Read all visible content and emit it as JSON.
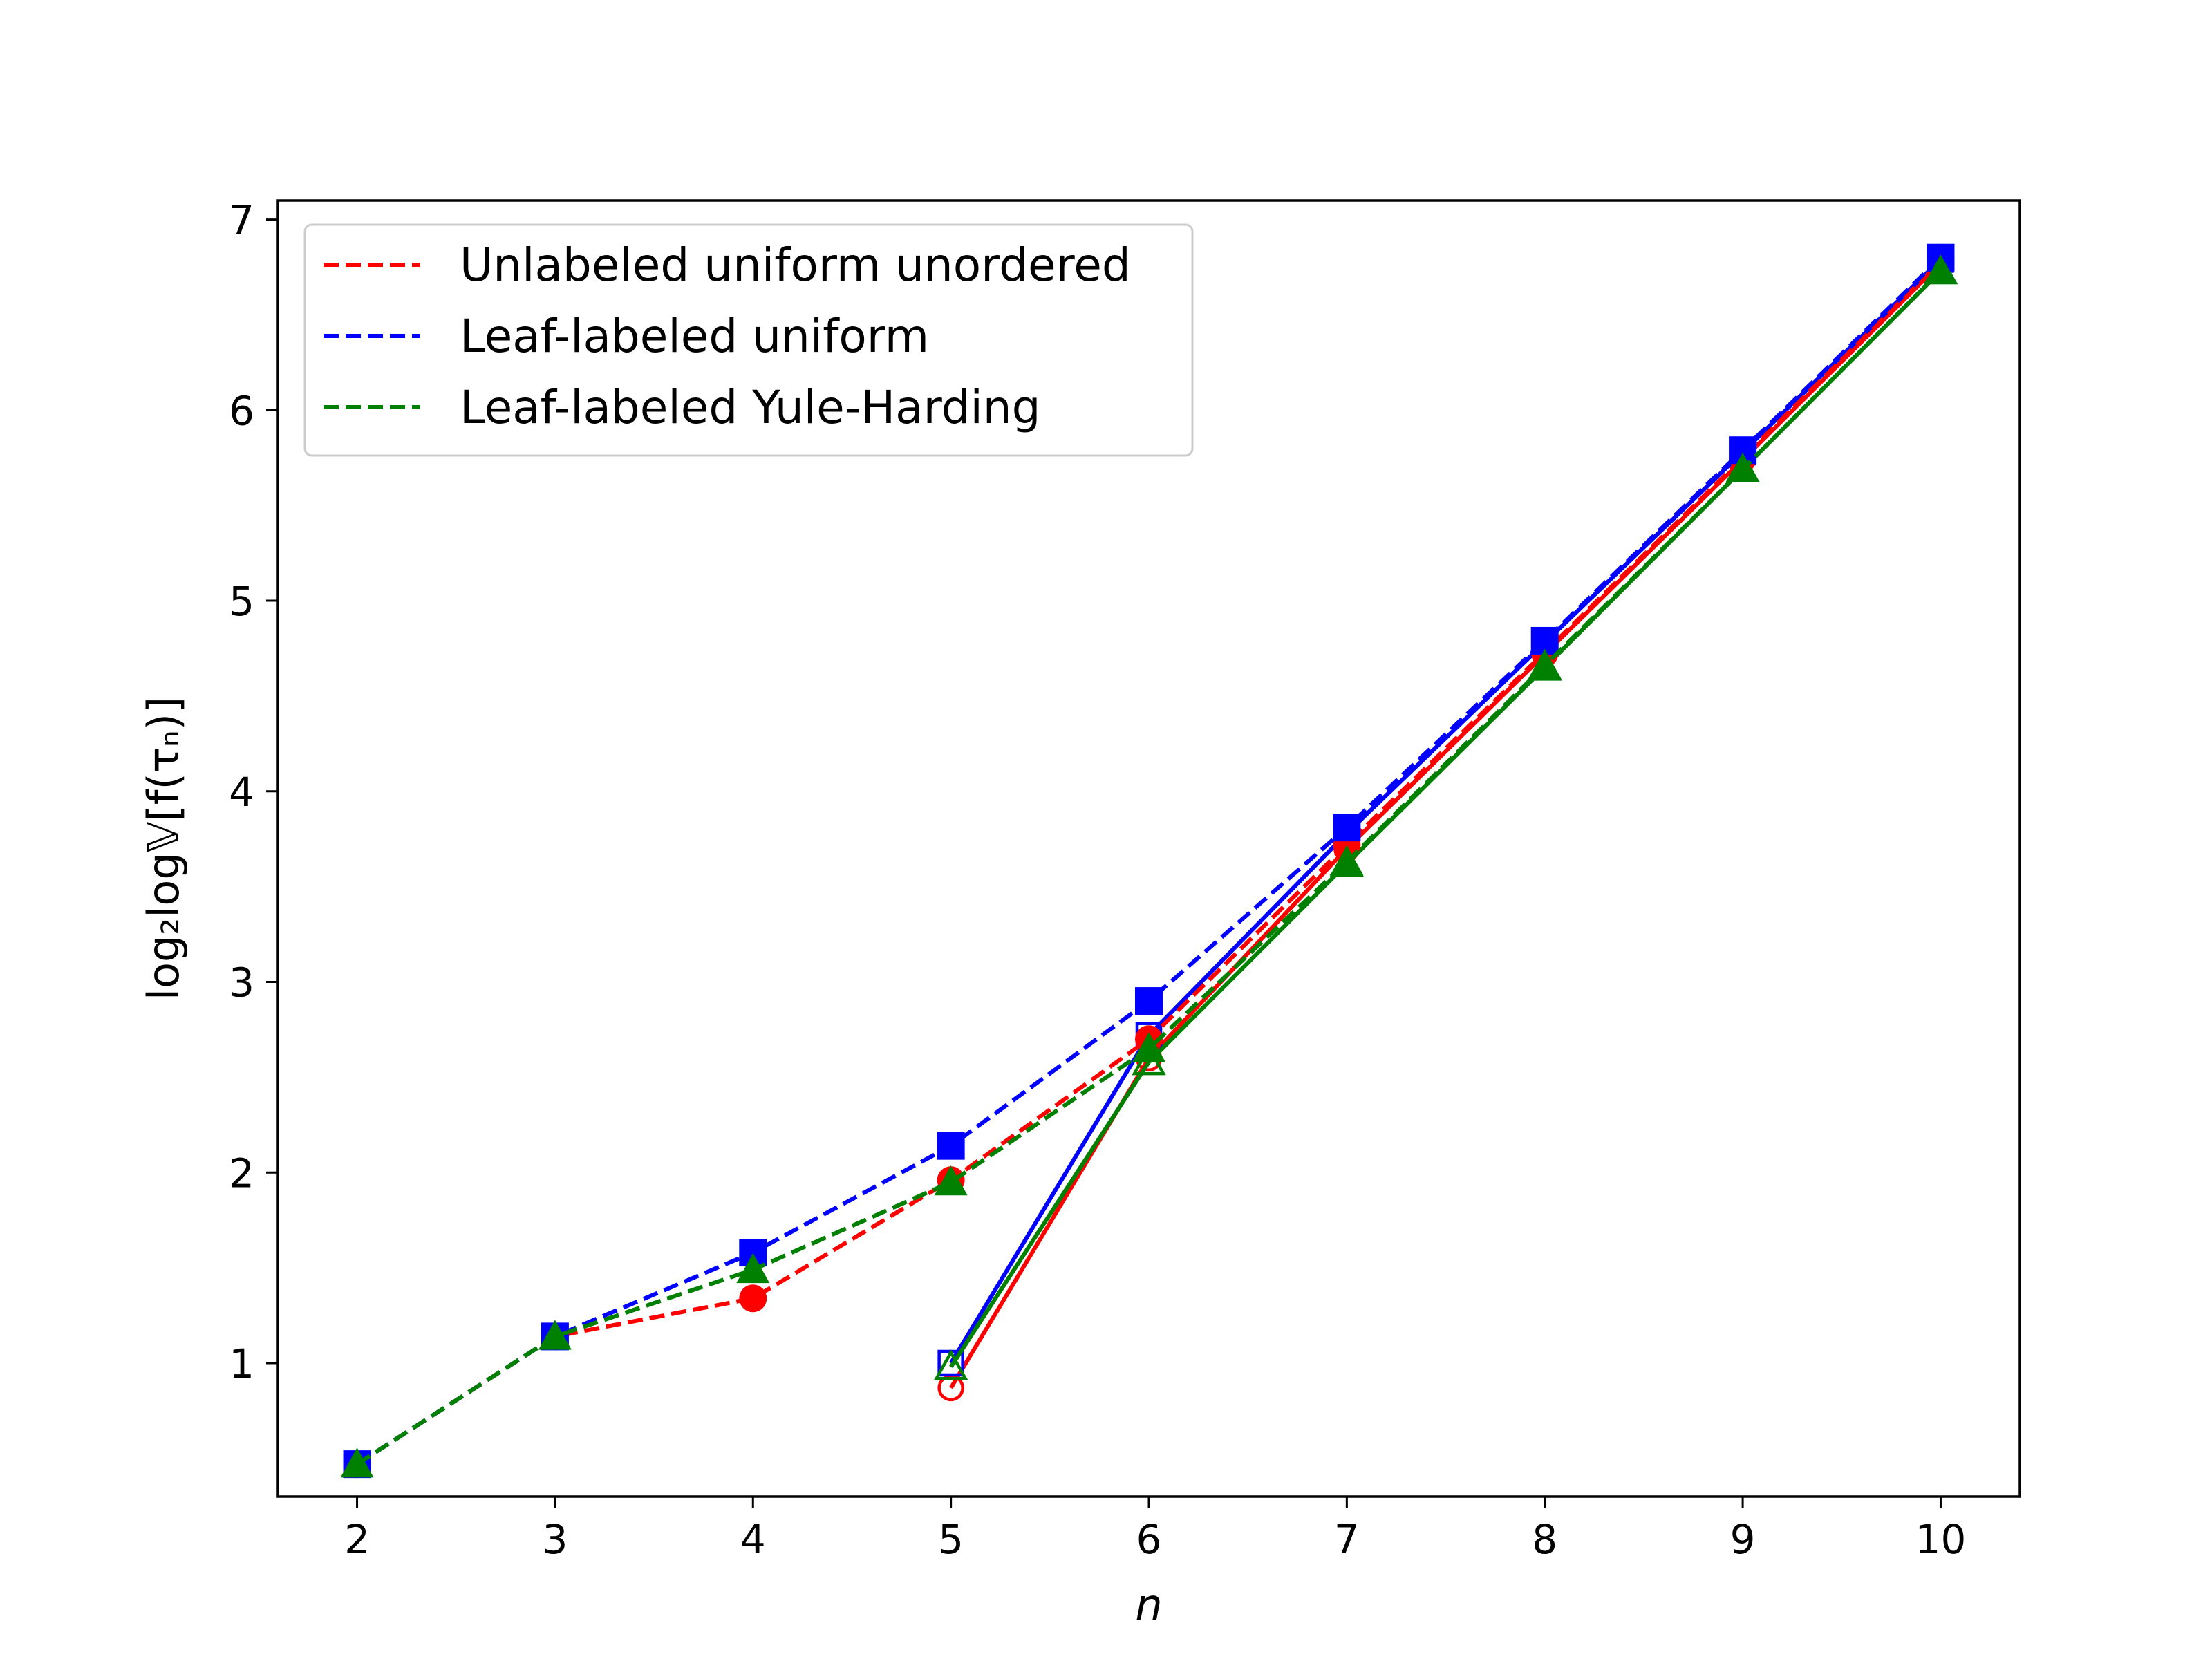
{
  "chart_data": {
    "type": "line",
    "title": "",
    "xlabel": "n",
    "ylabel": "log₂log𝕍[f(τₙ)]",
    "xlim": [
      1.6,
      10.4
    ],
    "ylim": [
      0.3,
      7.1
    ],
    "xticks": [
      "2",
      "3",
      "4",
      "5",
      "6",
      "7",
      "8",
      "9",
      "10"
    ],
    "yticks": [
      "1",
      "2",
      "3",
      "4",
      "5",
      "6",
      "7"
    ],
    "grid": false,
    "legend_position": "top-left",
    "series": [
      {
        "name": "Unlabeled uniform unordered",
        "color": "#ff0000",
        "linestyle": "dashed",
        "marker": "circle",
        "x": [
          2,
          3,
          4,
          5,
          6,
          7,
          8,
          9,
          10
        ],
        "y": [
          0.47,
          1.14,
          1.34,
          1.96,
          2.7,
          3.72,
          4.73,
          5.75,
          6.78
        ]
      },
      {
        "name": "Leaf-labeled uniform",
        "color": "#0000ff",
        "linestyle": "dashed",
        "marker": "square",
        "x": [
          2,
          3,
          4,
          5,
          6,
          7,
          8,
          9,
          10
        ],
        "y": [
          0.47,
          1.14,
          1.58,
          2.14,
          2.9,
          3.81,
          4.79,
          5.79,
          6.8
        ]
      },
      {
        "name": "Leaf-labeled Yule-Harding",
        "color": "#008000",
        "linestyle": "dashed",
        "marker": "triangle",
        "x": [
          2,
          3,
          4,
          5,
          6,
          7,
          8,
          9,
          10
        ],
        "y": [
          0.47,
          1.14,
          1.49,
          1.95,
          2.65,
          3.63,
          4.66,
          5.69,
          6.73
        ]
      },
      {
        "color": "#ff0000",
        "linestyle": "solid",
        "marker": "circle-open",
        "x": [
          5,
          6,
          7,
          8,
          9,
          10
        ],
        "y": [
          0.87,
          2.6,
          3.7,
          4.72,
          5.74,
          6.77
        ]
      },
      {
        "color": "#0000ff",
        "linestyle": "solid",
        "marker": "square-open",
        "x": [
          5,
          6,
          7,
          8,
          9,
          10
        ],
        "y": [
          1.0,
          2.72,
          3.78,
          4.78,
          5.78,
          6.79
        ]
      },
      {
        "color": "#008000",
        "linestyle": "solid",
        "marker": "triangle-open",
        "x": [
          5,
          6,
          7,
          8,
          9,
          10
        ],
        "y": [
          0.98,
          2.58,
          3.62,
          4.65,
          5.69,
          6.73
        ]
      }
    ]
  }
}
